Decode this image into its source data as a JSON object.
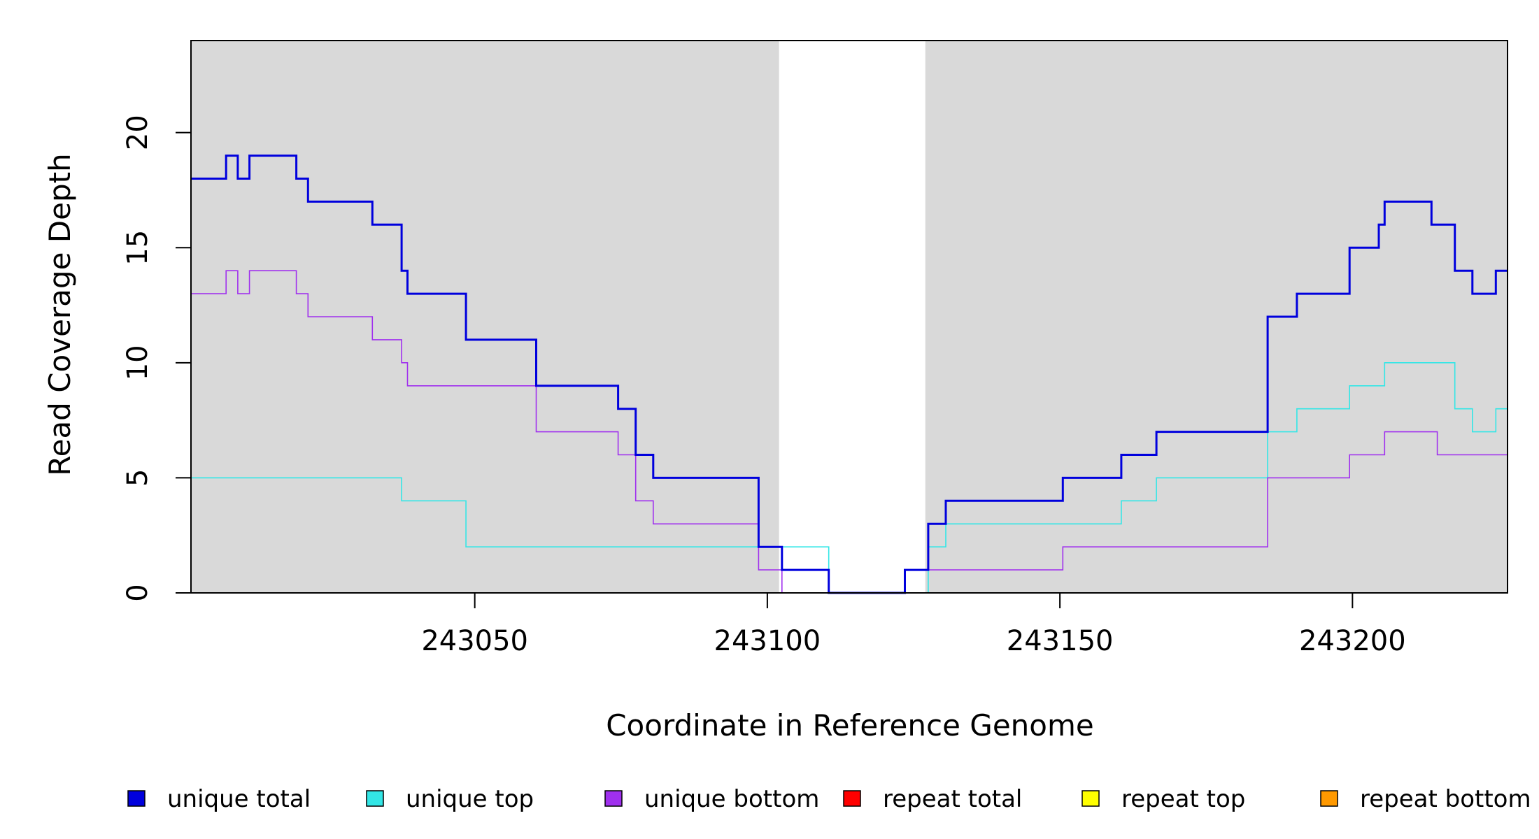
{
  "chart_data": {
    "type": "line",
    "xlabel": "Coordinate in Reference Genome",
    "ylabel": "Read Coverage Depth",
    "xlim": [
      243001.5,
      243226.5
    ],
    "ylim": [
      0,
      24
    ],
    "x_ticks": [
      243050,
      243100,
      243150,
      243200
    ],
    "y_ticks": [
      0,
      5,
      10,
      15,
      20
    ],
    "x_tick_labels": [
      "243050",
      "243100",
      "243150",
      "243200"
    ],
    "y_tick_labels": [
      "0",
      "5",
      "10",
      "15",
      "20"
    ],
    "grid": false,
    "background": "#d9d9d9",
    "unshaded_region": [
      243102,
      243127
    ],
    "legend_position": "bottom",
    "series": [
      {
        "name": "unique total",
        "color": "#0000dd",
        "emphasis": "thick",
        "x": [
          243001.5,
          243007.5,
          243009.5,
          243011.5,
          243019.5,
          243021.5,
          243032.5,
          243037.5,
          243038.5,
          243048.5,
          243060.5,
          243074.5,
          243077.5,
          243080.5,
          243098.5,
          243102.5,
          243110.5,
          243123.5,
          243127.5,
          243130.5,
          243150.5,
          243160.5,
          243166.5,
          243185.5,
          243190.5,
          243199.5,
          243204.5,
          243205.5,
          243213.5,
          243217.5,
          243220.5,
          243224.5,
          243226.5
        ],
        "y": [
          18,
          19,
          18,
          19,
          18,
          17,
          16,
          14,
          13,
          11,
          9,
          8,
          6,
          5,
          2,
          1,
          0,
          1,
          3,
          4,
          5,
          6,
          7,
          12,
          13,
          15,
          16,
          17,
          16,
          14,
          13,
          14,
          14
        ]
      },
      {
        "name": "unique top",
        "color": "#33e6e6",
        "emphasis": "thin",
        "x": [
          243001.5,
          243037.5,
          243048.5,
          243098.5,
          243110.5,
          243127.5,
          243130.5,
          243160.5,
          243166.5,
          243185.5,
          243190.5,
          243199.5,
          243205.5,
          243217.5,
          243220.5,
          243224.5,
          243226.5
        ],
        "y": [
          5,
          4,
          2,
          2,
          0,
          2,
          3,
          4,
          5,
          7,
          8,
          9,
          10,
          8,
          7,
          8,
          8
        ]
      },
      {
        "name": "unique bottom",
        "color": "#a030ee",
        "emphasis": "thin",
        "x": [
          243001.5,
          243007.5,
          243009.5,
          243011.5,
          243019.5,
          243021.5,
          243032.5,
          243037.5,
          243038.5,
          243060.5,
          243074.5,
          243077.5,
          243080.5,
          243098.5,
          243102.5,
          243123.5,
          243150.5,
          243185.5,
          243199.5,
          243205.5,
          243214.5,
          243226.5
        ],
        "y": [
          13,
          14,
          13,
          14,
          13,
          12,
          11,
          10,
          9,
          7,
          6,
          4,
          3,
          1,
          0,
          1,
          2,
          5,
          6,
          7,
          6,
          6
        ]
      },
      {
        "name": "repeat total",
        "color": "#ff0000",
        "emphasis": "thin",
        "x": [
          243001.5,
          243226.5
        ],
        "y": [
          0,
          0
        ]
      },
      {
        "name": "repeat top",
        "color": "#ffff00",
        "emphasis": "thin",
        "x": [
          243001.5,
          243226.5
        ],
        "y": [
          0,
          0
        ]
      },
      {
        "name": "repeat bottom",
        "color": "#ff9900",
        "emphasis": "thin",
        "x": [
          243001.5,
          243226.5
        ],
        "y": [
          0,
          0
        ]
      }
    ]
  }
}
